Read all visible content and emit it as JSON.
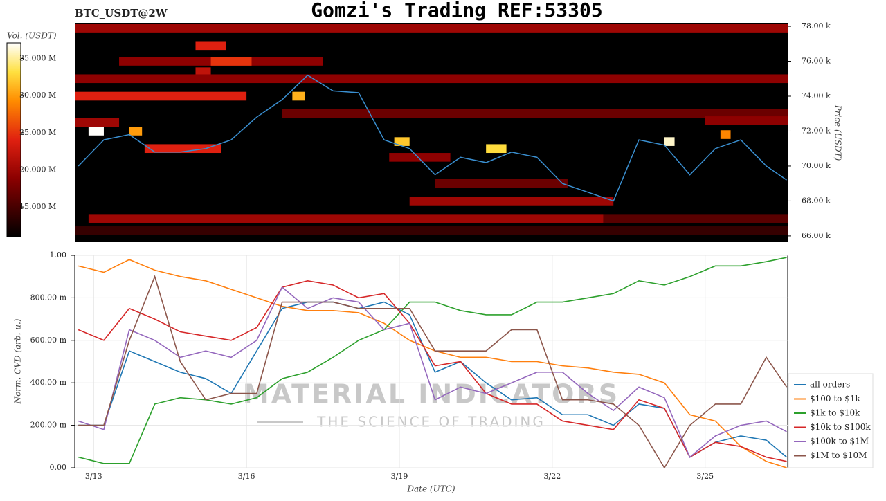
{
  "chart_data": [
    {
      "type": "heatmap",
      "title": "Gomzi's Trading REF:53305",
      "subtitle": "BTC_USDT@2W",
      "colorbar_label": "Vol. (USDT)",
      "y_label": "Price (USDT)",
      "clim": [
        11000000,
        37100000
      ],
      "cticks": [
        {
          "value": 15000000,
          "label": "15.000 M"
        },
        {
          "value": 20000000,
          "label": "20.000 M"
        },
        {
          "value": 25000000,
          "label": "25.000 M"
        },
        {
          "value": 30000000,
          "label": "30.000 M"
        },
        {
          "value": 35000000,
          "label": "35.000 M"
        }
      ],
      "xlim": [
        12.63,
        26.62
      ],
      "ylim": [
        65640,
        78200
      ],
      "yticks": [
        {
          "value": 66000,
          "label": "66.00 k"
        },
        {
          "value": 68000,
          "label": "68.00 k"
        },
        {
          "value": 70000,
          "label": "70.00 k"
        },
        {
          "value": 72000,
          "label": "72.00 k"
        },
        {
          "value": 74000,
          "label": "74.00 k"
        },
        {
          "value": 76000,
          "label": "76.00 k"
        },
        {
          "value": 78000,
          "label": "78.00 k"
        }
      ],
      "cells": [
        {
          "x": [
            12.63,
            26.62
          ],
          "price": 77900,
          "volume": 20000000
        },
        {
          "x": [
            15.0,
            15.6
          ],
          "price": 76900,
          "volume": 24000000
        },
        {
          "x": [
            13.5,
            17.5
          ],
          "price": 76000,
          "volume": 19000000
        },
        {
          "x": [
            15.3,
            16.1
          ],
          "price": 76000,
          "volume": 25000000
        },
        {
          "x": [
            15.0,
            15.3
          ],
          "price": 75400,
          "volume": 22000000
        },
        {
          "x": [
            12.63,
            26.62
          ],
          "price": 75000,
          "volume": 19000000
        },
        {
          "x": [
            12.63,
            16.0
          ],
          "price": 74000,
          "volume": 24000000
        },
        {
          "x": [
            16.7,
            26.62
          ],
          "price": 73000,
          "volume": 17000000
        },
        {
          "x": [
            25.0,
            26.62
          ],
          "price": 72600,
          "volume": 19000000
        },
        {
          "x": [
            12.63,
            13.5
          ],
          "price": 72500,
          "volume": 20000000
        },
        {
          "x": [
            12.9,
            13.2
          ],
          "price": 72000,
          "volume": 37000000
        },
        {
          "x": [
            14.0,
            15.5
          ],
          "price": 71000,
          "volume": 24000000
        },
        {
          "x": [
            18.8,
            20.0
          ],
          "price": 70500,
          "volume": 19000000
        },
        {
          "x": [
            19.7,
            22.3
          ],
          "price": 69000,
          "volume": 17000000
        },
        {
          "x": [
            19.2,
            23.2
          ],
          "price": 68000,
          "volume": 20000000
        },
        {
          "x": [
            12.9,
            23.0
          ],
          "price": 67000,
          "volume": 20000000
        },
        {
          "x": [
            23.0,
            26.62
          ],
          "price": 67000,
          "volume": 16000000
        },
        {
          "x": [
            12.63,
            26.62
          ],
          "price": 66300,
          "volume": 14000000
        },
        {
          "x": [
            13.7,
            13.95
          ],
          "price": 72000,
          "volume": 30000000
        },
        {
          "x": [
            16.9,
            17.15
          ],
          "price": 74000,
          "volume": 31000000
        },
        {
          "x": [
            18.9,
            19.2
          ],
          "price": 71400,
          "volume": 32000000
        },
        {
          "x": [
            20.7,
            21.1
          ],
          "price": 71000,
          "volume": 33000000
        },
        {
          "x": [
            24.2,
            24.4
          ],
          "price": 71400,
          "volume": 36000000
        },
        {
          "x": [
            25.3,
            25.5
          ],
          "price": 71800,
          "volume": 29000000
        }
      ],
      "x": [
        12.7,
        13.2,
        13.7,
        14.2,
        14.7,
        15.2,
        15.7,
        16.2,
        16.7,
        17.2,
        17.7,
        18.2,
        18.7,
        19.2,
        19.7,
        20.2,
        20.7,
        21.2,
        21.7,
        22.2,
        22.7,
        23.2,
        23.7,
        24.2,
        24.7,
        25.2,
        25.7,
        26.2,
        26.6
      ],
      "line": {
        "color": "#3a8fd0",
        "values": [
          70000,
          71500,
          71800,
          70800,
          70800,
          71000,
          71500,
          72800,
          73800,
          75200,
          74300,
          74200,
          71500,
          71000,
          69500,
          70500,
          70200,
          70800,
          70500,
          69000,
          68500,
          68000,
          71500,
          71200,
          69500,
          71000,
          71500,
          70000,
          69200
        ]
      }
    },
    {
      "type": "line",
      "x_label": "Date (UTC)",
      "y_label": "Norm. CVD (arb. u.)",
      "annotations": [
        "MATERIAL INDICATORS",
        "THE SCIENCE OF TRADING"
      ],
      "xlim": [
        12.63,
        26.62
      ],
      "ylim": [
        0,
        1
      ],
      "xticks": [
        {
          "value": 13,
          "label": "3/13"
        },
        {
          "value": 16,
          "label": "3/16"
        },
        {
          "value": 19,
          "label": "3/19"
        },
        {
          "value": 22,
          "label": "3/22"
        },
        {
          "value": 25,
          "label": "3/25"
        }
      ],
      "yticks": [
        {
          "value": 0,
          "label": "0.00"
        },
        {
          "value": 0.2,
          "label": "200.00 m"
        },
        {
          "value": 0.4,
          "label": "400.00 m"
        },
        {
          "value": 0.6,
          "label": "600.00 m"
        },
        {
          "value": 0.8,
          "label": "800.00 m"
        },
        {
          "value": 1,
          "label": "1.00"
        }
      ],
      "grid": true,
      "x": [
        12.7,
        13.2,
        13.7,
        14.2,
        14.7,
        15.2,
        15.7,
        16.2,
        16.7,
        17.2,
        17.7,
        18.2,
        18.7,
        19.2,
        19.7,
        20.2,
        20.7,
        21.2,
        21.7,
        22.2,
        22.7,
        23.2,
        23.7,
        24.2,
        24.7,
        25.2,
        25.7,
        26.2,
        26.6
      ],
      "series": [
        {
          "name": "all orders",
          "color": "#1f77b4",
          "values": [
            0.2,
            0.2,
            0.55,
            0.5,
            0.45,
            0.42,
            0.35,
            0.55,
            0.75,
            0.78,
            0.78,
            0.75,
            0.78,
            0.72,
            0.45,
            0.5,
            0.4,
            0.32,
            0.33,
            0.25,
            0.25,
            0.2,
            0.3,
            0.28,
            0.05,
            0.12,
            0.15,
            0.13,
            0.05
          ]
        },
        {
          "name": "$100 to $1k",
          "color": "#ff7f0e",
          "values": [
            0.95,
            0.92,
            0.98,
            0.93,
            0.9,
            0.88,
            0.84,
            0.8,
            0.76,
            0.74,
            0.74,
            0.73,
            0.68,
            0.6,
            0.55,
            0.52,
            0.52,
            0.5,
            0.5,
            0.48,
            0.47,
            0.45,
            0.44,
            0.4,
            0.25,
            0.22,
            0.1,
            0.03,
            0.0
          ]
        },
        {
          "name": "$1k to $10k",
          "color": "#2ca02c",
          "values": [
            0.05,
            0.02,
            0.02,
            0.3,
            0.33,
            0.32,
            0.3,
            0.33,
            0.42,
            0.45,
            0.52,
            0.6,
            0.65,
            0.78,
            0.78,
            0.74,
            0.72,
            0.72,
            0.78,
            0.78,
            0.8,
            0.82,
            0.88,
            0.86,
            0.9,
            0.95,
            0.95,
            0.97,
            0.99
          ]
        },
        {
          "name": "$10k to $100k",
          "color": "#d62728",
          "values": [
            0.65,
            0.6,
            0.75,
            0.7,
            0.64,
            0.62,
            0.6,
            0.66,
            0.85,
            0.88,
            0.86,
            0.8,
            0.82,
            0.68,
            0.48,
            0.5,
            0.35,
            0.3,
            0.3,
            0.22,
            0.2,
            0.18,
            0.32,
            0.28,
            0.05,
            0.12,
            0.1,
            0.05,
            0.03
          ]
        },
        {
          "name": "$100k to $1M",
          "color": "#9467bd",
          "values": [
            0.22,
            0.18,
            0.65,
            0.6,
            0.52,
            0.55,
            0.52,
            0.6,
            0.85,
            0.75,
            0.8,
            0.78,
            0.65,
            0.68,
            0.32,
            0.38,
            0.35,
            0.4,
            0.45,
            0.45,
            0.35,
            0.27,
            0.38,
            0.33,
            0.05,
            0.15,
            0.2,
            0.22,
            0.17
          ]
        },
        {
          "name": "$1M to $10M",
          "color": "#8c564b",
          "values": [
            0.2,
            0.2,
            0.6,
            0.9,
            0.5,
            0.32,
            0.35,
            0.35,
            0.78,
            0.78,
            0.78,
            0.75,
            0.75,
            0.75,
            0.55,
            0.55,
            0.55,
            0.65,
            0.65,
            0.32,
            0.32,
            0.3,
            0.2,
            0.0,
            0.2,
            0.3,
            0.3,
            0.52,
            0.38
          ]
        }
      ]
    }
  ]
}
